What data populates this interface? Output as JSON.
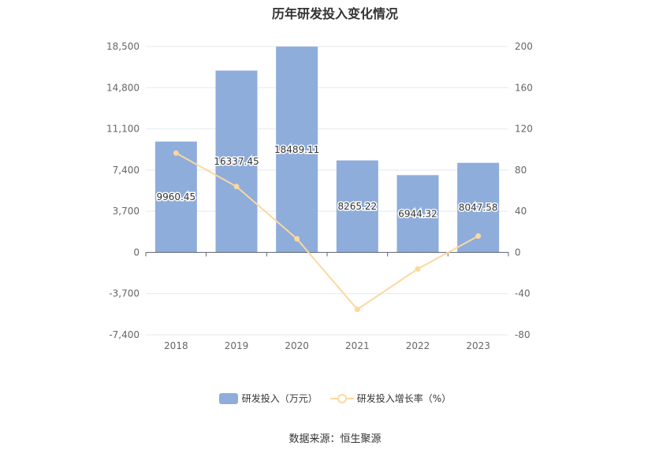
{
  "title": "历年研发投入变化情况",
  "source": "数据来源：恒生聚源",
  "legend": {
    "bar_label": "研发投入（万元）",
    "line_label": "研发投入增长率（%）"
  },
  "colors": {
    "bar": "#8eaddb",
    "line": "#fbd89f",
    "axis_text": "#666666",
    "grid": "#e6e8f0",
    "axis_line": "#5d6373"
  },
  "chart_data": {
    "type": "bar",
    "categories": [
      "2018",
      "2019",
      "2020",
      "2021",
      "2022",
      "2023"
    ],
    "series": [
      {
        "name": "研发投入（万元）",
        "type": "bar",
        "axis": "left",
        "values": [
          9960.45,
          16337.45,
          18489.11,
          8265.22,
          6944.32,
          8047.58
        ],
        "data_labels": [
          "9960.45",
          "16337.45",
          "18489.11",
          "8265.22",
          "6944.32",
          "8047.58"
        ]
      },
      {
        "name": "研发投入增长率（%）",
        "type": "line",
        "axis": "right",
        "values": [
          96.5,
          64.0,
          13.2,
          -55.3,
          -16.0,
          15.9
        ]
      }
    ],
    "y_left": {
      "ylim": [
        -7400,
        18500
      ],
      "ticks": [
        18500,
        14800,
        11100,
        7400,
        3700,
        0,
        -3700,
        -7400
      ],
      "tick_labels": [
        "18,500",
        "14,800",
        "11,100",
        "7,400",
        "3,700",
        "0",
        "-3,700",
        "-7,400"
      ]
    },
    "y_right": {
      "ylim": [
        -80,
        200
      ],
      "ticks": [
        200,
        160,
        120,
        80,
        40,
        0,
        -40,
        -80
      ],
      "tick_labels": [
        "200",
        "160",
        "120",
        "80",
        "40",
        "0",
        "-40",
        "-80"
      ]
    },
    "grid": true,
    "legend_position": "bottom"
  }
}
